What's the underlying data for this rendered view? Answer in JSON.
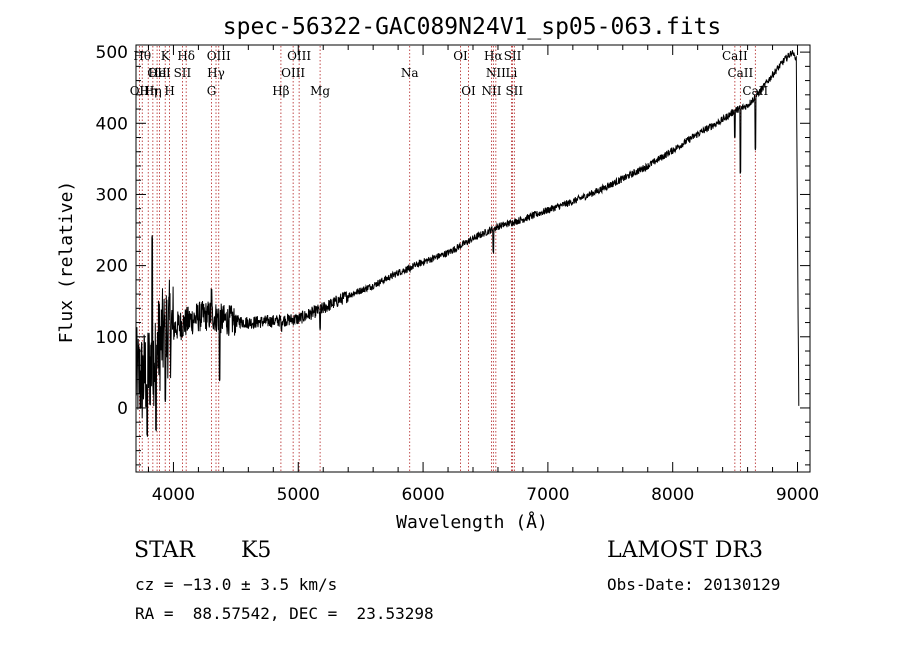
{
  "chart_data": {
    "type": "line",
    "title": "spec-56322-GAC089N24V1_sp05-063.fits",
    "xlabel": "Wavelength (Å)",
    "ylabel": "Flux (relative)",
    "xlim": [
      3700,
      9100
    ],
    "ylim": [
      -90,
      510
    ],
    "xticks": [
      4000,
      5000,
      6000,
      7000,
      8000,
      9000
    ],
    "yticks": [
      0,
      100,
      200,
      300,
      400,
      500
    ],
    "xtick_labels": [
      "4000",
      "5000",
      "6000",
      "7000",
      "8000",
      "9000"
    ],
    "ytick_labels": [
      "0",
      "100",
      "200",
      "300",
      "400",
      "500"
    ],
    "grid": false,
    "series": [
      {
        "name": "flux",
        "anchors": {
          "x": [
            3700,
            3750,
            3800,
            3850,
            3900,
            3950,
            4000,
            4100,
            4200,
            4300,
            4400,
            4600,
            4800,
            5000,
            5200,
            5400,
            5600,
            5800,
            6000,
            6200,
            6400,
            6600,
            6800,
            7000,
            7200,
            7400,
            7600,
            7800,
            8000,
            8200,
            8400,
            8500,
            8600,
            8700,
            8800,
            8900,
            8960,
            8990,
            9000,
            9010
          ],
          "y": [
            45,
            40,
            55,
            75,
            95,
            110,
            112,
            120,
            128,
            130,
            124,
            120,
            122,
            125,
            140,
            158,
            172,
            190,
            205,
            218,
            238,
            255,
            265,
            278,
            290,
            305,
            322,
            340,
            362,
            385,
            405,
            418,
            425,
            445,
            468,
            490,
            500,
            490,
            250,
            5
          ]
        },
        "features": [
          {
            "x": 3830,
            "y": 240
          },
          {
            "x": 3790,
            "y": -40
          },
          {
            "x": 3860,
            "y": -30
          },
          {
            "x": 3935,
            "y": 10
          },
          {
            "x": 4305,
            "y": 165
          },
          {
            "x": 4370,
            "y": 40
          },
          {
            "x": 4865,
            "y": 110
          },
          {
            "x": 5175,
            "y": 110
          },
          {
            "x": 5892,
            "y": 190
          },
          {
            "x": 6563,
            "y": 220
          },
          {
            "x": 8498,
            "y": 380
          },
          {
            "x": 8542,
            "y": 330
          },
          {
            "x": 8662,
            "y": 365
          }
        ]
      }
    ],
    "lines": [
      {
        "wave": 3727,
        "top": "OII",
        "pos": 2
      },
      {
        "wave": 3750,
        "top": "Hθ",
        "pos": 0
      },
      {
        "wave": 3798,
        "top": "Hη",
        "pos": 2
      },
      {
        "wave": 3835,
        "top": "Hη",
        "pos": 2
      },
      {
        "wave": 3869,
        "top": "OII",
        "pos": 1
      },
      {
        "wave": 3889,
        "top": "HeI",
        "pos": 1
      },
      {
        "wave": 3934,
        "top": "K",
        "pos": 0
      },
      {
        "wave": 3969,
        "top": "H",
        "pos": 2
      },
      {
        "wave": 4072,
        "top": "SII",
        "pos": 1
      },
      {
        "wave": 4102,
        "top": "Hδ",
        "pos": 0
      },
      {
        "wave": 4305,
        "top": "G",
        "pos": 2
      },
      {
        "wave": 4341,
        "top": "Hγ",
        "pos": 1
      },
      {
        "wave": 4363,
        "top": "OIII",
        "pos": 0
      },
      {
        "wave": 4861,
        "top": "Hβ",
        "pos": 2
      },
      {
        "wave": 4959,
        "top": "OIII",
        "pos": 1
      },
      {
        "wave": 5007,
        "top": "OIII",
        "pos": 0
      },
      {
        "wave": 5175,
        "top": "Mg",
        "pos": 2
      },
      {
        "wave": 5893,
        "top": "Na",
        "pos": 1
      },
      {
        "wave": 6300,
        "top": "OI",
        "pos": 0
      },
      {
        "wave": 6364,
        "top": "OI",
        "pos": 2
      },
      {
        "wave": 6548,
        "top": "NII",
        "pos": 2
      },
      {
        "wave": 6563,
        "top": "Hα",
        "pos": 0
      },
      {
        "wave": 6583,
        "top": "NII",
        "pos": 1
      },
      {
        "wave": 6708,
        "top": "Li",
        "pos": 1
      },
      {
        "wave": 6717,
        "top": "SII",
        "pos": 0
      },
      {
        "wave": 6731,
        "top": "SII",
        "pos": 2
      },
      {
        "wave": 8498,
        "top": "CaII",
        "pos": 0
      },
      {
        "wave": 8542,
        "top": "CaII",
        "pos": 1
      },
      {
        "wave": 8662,
        "top": "CaII",
        "pos": 2
      }
    ]
  },
  "info": {
    "class_label": "STAR",
    "subclass": "K5",
    "survey": "LAMOST DR3",
    "cz": "cz = −13.0 ± 3.5 km/s",
    "obs_date": "Obs-Date: 20130129",
    "radec": "RA =  88.57542, DEC =  23.53298"
  }
}
